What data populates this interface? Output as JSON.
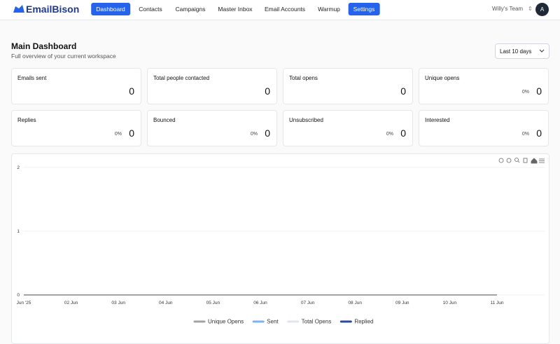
{
  "nav": {
    "logo": "EmailBison",
    "items": [
      "Dashboard",
      "Contacts",
      "Campaigns",
      "Master Inbox",
      "Email Accounts",
      "Warmup",
      "Settings"
    ],
    "team": "Willy's Team",
    "avatar": "A"
  },
  "header": {
    "title": "Main Dashboard",
    "subtitle": "Full overview of your current workspace",
    "range": "Last 10 days"
  },
  "cards": [
    {
      "label": "Emails sent",
      "value": 0
    },
    {
      "label": "Total people contacted",
      "value": 0
    },
    {
      "label": "Total opens",
      "value": 0
    },
    {
      "label": "Unique opens",
      "percent": "0%",
      "value": 0
    },
    {
      "label": "Replies",
      "percent": "0%",
      "value": 0
    },
    {
      "label": "Bounced",
      "percent": "0%",
      "value": 0
    },
    {
      "label": "Unsubscribed",
      "percent": "0%",
      "value": 0
    },
    {
      "label": "Interested",
      "percent": "0%",
      "value": 0
    }
  ],
  "chart_data": {
    "type": "line",
    "categories": [
      "Jun '25",
      "02 Jun",
      "03 Jun",
      "04 Jun",
      "05 Jun",
      "06 Jun",
      "07 Jun",
      "08 Jun",
      "09 Jun",
      "10 Jun",
      "11 Jun"
    ],
    "series": [
      {
        "name": "Unique Opens",
        "color": "#a3a3a3",
        "values": [
          0,
          0,
          0,
          0,
          0,
          0,
          0,
          0,
          0,
          0,
          0
        ]
      },
      {
        "name": "Sent",
        "color": "#7fb2f0",
        "values": [
          0,
          0,
          0,
          0,
          0,
          0,
          0,
          0,
          0,
          0,
          0
        ]
      },
      {
        "name": "Total Opens",
        "color": "#dde6ef",
        "values": [
          0,
          0,
          0,
          0,
          0,
          0,
          0,
          0,
          0,
          0,
          0
        ]
      },
      {
        "name": "Replied",
        "color": "#2a4a9c",
        "values": [
          0,
          0,
          0,
          0,
          0,
          0,
          0,
          0,
          0,
          0,
          0
        ]
      }
    ],
    "ylim": [
      0,
      2
    ],
    "yticks": [
      0,
      1,
      2
    ],
    "grid": true,
    "legend": "bottom"
  }
}
